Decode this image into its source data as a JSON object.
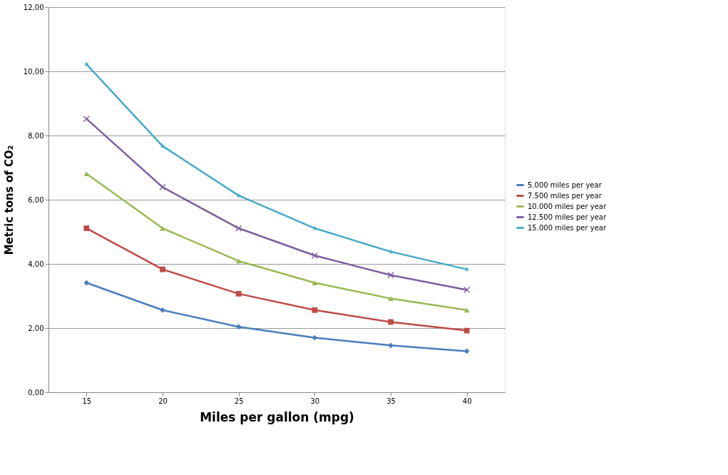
{
  "chart_data": {
    "type": "line",
    "xlabel": "Miles per gallon (mpg)",
    "ylabel": "Metric tons of CO₂",
    "categories": [
      "15",
      "20",
      "25",
      "30",
      "35",
      "40"
    ],
    "ylim": [
      0,
      12
    ],
    "yticks": [
      {
        "value": 0,
        "label": "0,00"
      },
      {
        "value": 2,
        "label": "2,00"
      },
      {
        "value": 4,
        "label": "4,00"
      },
      {
        "value": 6,
        "label": "6,00"
      },
      {
        "value": 8,
        "label": "8,00"
      },
      {
        "value": 10,
        "label": "10,00"
      },
      {
        "value": 12,
        "label": "12,00"
      }
    ],
    "grid": "y",
    "legend": "right",
    "line_style": "solid",
    "series": [
      {
        "name": "5.000 miles per year",
        "color": "#4a7ebb",
        "marker": "diamond",
        "values": [
          3.41,
          2.56,
          2.04,
          1.7,
          1.46,
          1.28
        ]
      },
      {
        "name": "7.500 miles per year",
        "color": "#be4b48",
        "marker": "square",
        "values": [
          5.11,
          3.83,
          3.07,
          2.56,
          2.19,
          1.92
        ]
      },
      {
        "name": "10.000 miles per year",
        "color": "#98b954",
        "marker": "triangle",
        "values": [
          6.81,
          5.11,
          4.09,
          3.41,
          2.92,
          2.56
        ]
      },
      {
        "name": "12.500 miles per year",
        "color": "#7d60a0",
        "marker": "cross",
        "values": [
          8.52,
          6.39,
          5.11,
          4.26,
          3.65,
          3.19
        ]
      },
      {
        "name": "15.000 miles per year",
        "color": "#46aac5",
        "marker": "star",
        "values": [
          10.22,
          7.67,
          6.13,
          5.11,
          4.38,
          3.83
        ]
      }
    ]
  }
}
